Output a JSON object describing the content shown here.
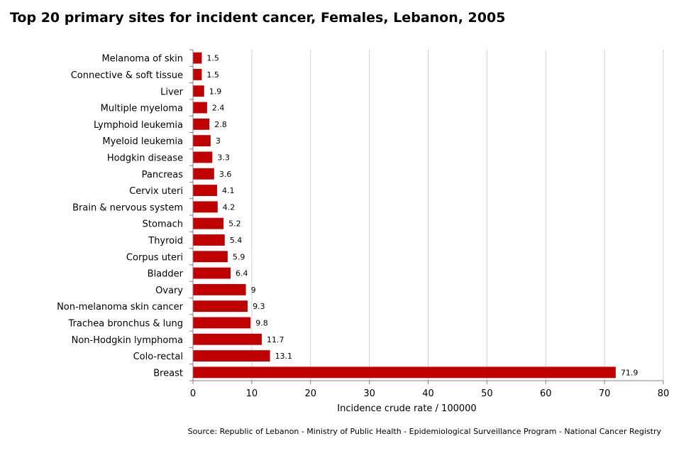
{
  "chart_data": {
    "type": "bar",
    "orientation": "horizontal",
    "title": "Top 20 primary sites for incident cancer, Females, Lebanon, 2005",
    "xlabel": "Incidence crude rate / 100000",
    "ylabel": "",
    "xlim": [
      0,
      80
    ],
    "xticks": [
      0,
      10,
      20,
      30,
      40,
      50,
      60,
      70,
      80
    ],
    "grid": "vertical",
    "bar_color": "#c00000",
    "categories": [
      "Melanoma of skin",
      "Connective & soft tissue",
      "Liver",
      "Multiple myeloma",
      "Lymphoid leukemia",
      "Myeloid leukemia",
      "Hodgkin disease",
      "Pancreas",
      "Cervix uteri",
      "Brain & nervous system",
      "Stomach",
      "Thyroid",
      "Corpus uteri",
      "Bladder",
      "Ovary",
      "Non-melanoma skin cancer",
      "Trachea bronchus & lung",
      "Non-Hodgkin lymphoma",
      "Colo-rectal",
      "Breast"
    ],
    "values": [
      1.5,
      1.5,
      1.9,
      2.4,
      2.8,
      3,
      3.3,
      3.6,
      4.1,
      4.2,
      5.2,
      5.4,
      5.9,
      6.4,
      9,
      9.3,
      9.8,
      11.7,
      13.1,
      71.9
    ],
    "source": "Source:  Republic of Lebanon - Ministry of Public Health - Epidemiological Surveillance Program - National Cancer Registry"
  }
}
